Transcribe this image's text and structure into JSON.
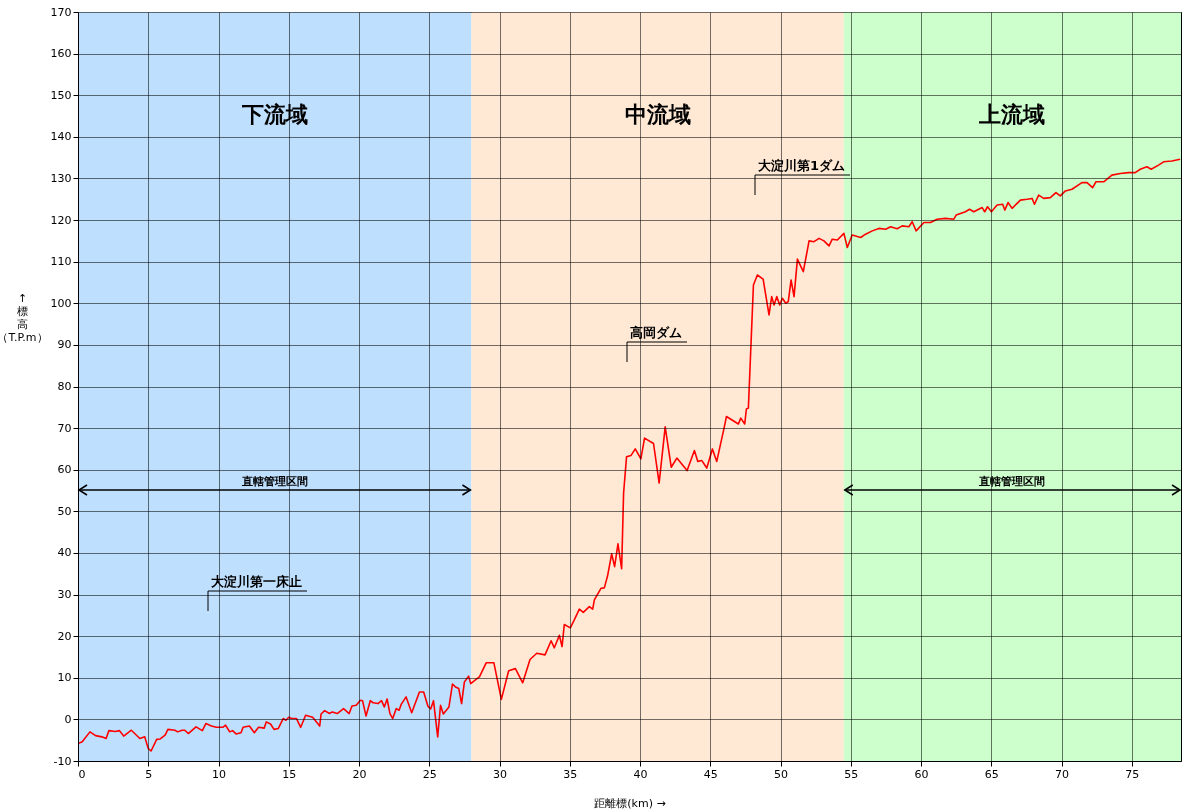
{
  "chart_data": {
    "type": "line",
    "xlabel": "距離標(km) →",
    "ylabel": "↑標高（T.P.m）",
    "xlim": [
      0,
      78.5
    ],
    "xticks": [
      0,
      5,
      10,
      15,
      20,
      25,
      30,
      35,
      40,
      45,
      50,
      55,
      60,
      65,
      70,
      75
    ],
    "ylim": [
      -10,
      170
    ],
    "yticks": [
      -10,
      0,
      10,
      20,
      30,
      40,
      50,
      60,
      70,
      80,
      90,
      100,
      110,
      120,
      130,
      140,
      150,
      160,
      170
    ],
    "grid": true,
    "marker": "none",
    "line_style": "solid",
    "bands": [
      {
        "axis": "x",
        "from": 0,
        "to": 28,
        "label": "下流域",
        "color": "#bfdfff"
      },
      {
        "axis": "x",
        "from": 28,
        "to": 54.5,
        "label": "中流域",
        "color": "#ffe9d5"
      },
      {
        "axis": "x",
        "from": 54.5,
        "to": 78.5,
        "label": "上流域",
        "color": "#ccffcc"
      }
    ],
    "annotations": [
      "直轄管理区間",
      "直轄管理区間",
      "大淀川第一床止",
      "高岡ダム",
      "大淀川第1ダム"
    ],
    "series": [
      {
        "color": "#ff0000",
        "x": [
          0,
          0.3,
          0.85,
          1.25,
          1.7,
          2.0,
          2.2,
          2.65,
          2.95,
          3.25,
          3.8,
          4.4,
          4.75,
          5.0,
          5.2,
          5.6,
          5.85,
          6.2,
          6.4,
          6.9,
          7.1,
          7.4,
          7.6,
          7.85,
          8.4,
          8.85,
          9.1,
          9.5,
          9.85,
          10.3,
          10.5,
          10.8,
          11.0,
          11.25,
          11.6,
          11.75,
          12.2,
          12.55,
          12.85,
          13.25,
          13.4,
          13.7,
          13.95,
          14.25,
          14.6,
          14.8,
          15.0,
          15.2,
          15.55,
          15.85,
          16.2,
          16.7,
          17.2,
          17.3,
          17.55,
          17.9,
          18.1,
          18.45,
          18.9,
          19.3,
          19.5,
          19.8,
          20.1,
          20.25,
          20.5,
          20.8,
          21.0,
          21.35,
          21.6,
          21.8,
          22.0,
          22.2,
          22.4,
          22.65,
          22.85,
          23.0,
          23.35,
          23.75,
          24.3,
          24.6,
          24.9,
          25.1,
          25.3,
          25.6,
          25.8,
          26.0,
          26.4,
          26.65,
          26.9,
          27.1,
          27.3,
          27.5,
          27.8,
          27.95,
          28.4,
          28.57,
          29.05,
          29.6,
          30.13,
          30.65,
          31.13,
          31.65,
          32.17,
          32.65,
          33.24,
          33.67,
          33.9,
          34.26,
          34.45,
          34.61,
          35.04,
          35.32,
          35.68,
          35.96,
          36.39,
          36.63,
          36.75,
          37.22,
          37.46,
          37.69,
          37.98,
          38.19,
          38.43,
          38.69,
          38.83,
          39.04,
          39.35,
          39.66,
          40.06,
          40.32,
          40.96,
          41.36,
          41.79,
          42.22,
          42.62,
          43.35,
          43.87,
          44.11,
          44.4,
          44.75,
          45.15,
          45.46,
          45.98,
          46.15,
          47.0,
          47.17,
          47.45,
          47.57,
          47.71,
          48.07,
          48.35,
          48.76,
          49.18,
          49.37,
          49.54,
          49.73,
          49.94,
          50.13,
          50.37,
          50.55,
          50.75,
          50.96,
          51.2,
          51.62,
          52.03,
          52.38,
          52.74,
          53.09,
          53.45,
          53.68,
          54.04,
          54.51,
          54.75,
          55.1,
          55.7,
          56.05,
          56.53,
          57.0,
          57.48,
          57.83,
          58.3,
          58.66,
          59.13,
          59.37,
          59.65,
          60.2,
          60.67,
          61.14,
          61.74,
          62.33,
          62.5,
          63.16,
          63.45,
          63.75,
          64.35,
          64.53,
          64.73,
          65.01,
          65.41,
          65.81,
          65.96,
          66.19,
          66.48,
          67.07,
          67.54,
          67.9,
          68.07,
          68.37,
          68.73,
          69.2,
          69.6,
          69.91,
          70.27,
          70.74,
          71.45,
          71.81,
          72.21,
          72.45,
          73.0,
          73.58,
          74.18,
          74.77,
          75.24,
          75.6,
          76.07,
          76.38,
          76.9,
          77.26,
          77.85,
          78.44
        ],
        "values": [
          -5.8,
          -5.4,
          -3.0,
          -3.9,
          -4.2,
          -4.6,
          -2.7,
          -2.9,
          -2.7,
          -4.0,
          -2.6,
          -4.6,
          -4.2,
          -7.0,
          -7.6,
          -4.8,
          -4.7,
          -3.8,
          -2.4,
          -2.6,
          -3.0,
          -2.6,
          -2.6,
          -3.4,
          -1.8,
          -2.7,
          -1.0,
          -1.6,
          -1.9,
          -1.9,
          -1.4,
          -3.0,
          -2.7,
          -3.5,
          -3.2,
          -1.9,
          -1.6,
          -3.2,
          -1.9,
          -2.1,
          -0.6,
          -1.1,
          -2.4,
          -2.2,
          0.2,
          -0.2,
          0.5,
          0.2,
          0.2,
          -1.9,
          1.0,
          0.5,
          -1.6,
          1.3,
          2.1,
          1.4,
          1.8,
          1.4,
          2.6,
          1.4,
          3.2,
          3.4,
          4.6,
          4.5,
          0.8,
          4.5,
          4.0,
          3.8,
          4.5,
          3.0,
          4.9,
          1.4,
          0.2,
          2.6,
          2.2,
          3.6,
          5.4,
          1.6,
          6.6,
          6.6,
          3.2,
          2.5,
          4.5,
          -4.2,
          3.4,
          1.3,
          3.0,
          8.5,
          7.7,
          7.4,
          3.8,
          9.0,
          10.4,
          8.6,
          9.8,
          10.2,
          13.6,
          13.6,
          4.8,
          11.7,
          12.2,
          8.8,
          14.4,
          15.9,
          15.5,
          18.9,
          17.2,
          20.2,
          17.5,
          22.8,
          22.0,
          23.9,
          26.5,
          25.7,
          27.1,
          26.5,
          28.7,
          31.5,
          31.6,
          34.5,
          39.8,
          36.7,
          42.2,
          36.2,
          54.4,
          63.1,
          63.4,
          65.0,
          62.6,
          67.6,
          66.3,
          56.8,
          70.3,
          60.6,
          62.8,
          59.8,
          64.6,
          62.0,
          62.2,
          60.4,
          65.0,
          62.0,
          70.0,
          72.8,
          71.0,
          72.4,
          71.0,
          74.6,
          74.8,
          104.4,
          106.8,
          105.8,
          97.2,
          101.6,
          99.6,
          101.6,
          99.6,
          101.2,
          100.0,
          100.4,
          105.6,
          101.6,
          110.6,
          107.6,
          115.0,
          114.8,
          115.6,
          115.0,
          113.8,
          115.4,
          115.2,
          116.8,
          113.4,
          116.4,
          115.8,
          116.6,
          117.4,
          118.0,
          117.8,
          118.4,
          117.9,
          118.6,
          118.4,
          119.6,
          117.4,
          119.4,
          119.4,
          120.2,
          120.4,
          120.2,
          121.2,
          122.0,
          122.6,
          122.0,
          123.0,
          122.0,
          123.2,
          122.0,
          123.6,
          123.8,
          122.4,
          124.2,
          122.8,
          124.8,
          125.0,
          125.2,
          123.8,
          126.0,
          125.2,
          125.4,
          126.6,
          125.8,
          127.0,
          127.4,
          129.0,
          129.0,
          127.8,
          129.2,
          129.2,
          130.8,
          131.2,
          131.4,
          131.4,
          132.2,
          132.8,
          132.2,
          133.2,
          134.0,
          134.2,
          134.6
        ]
      }
    ]
  }
}
